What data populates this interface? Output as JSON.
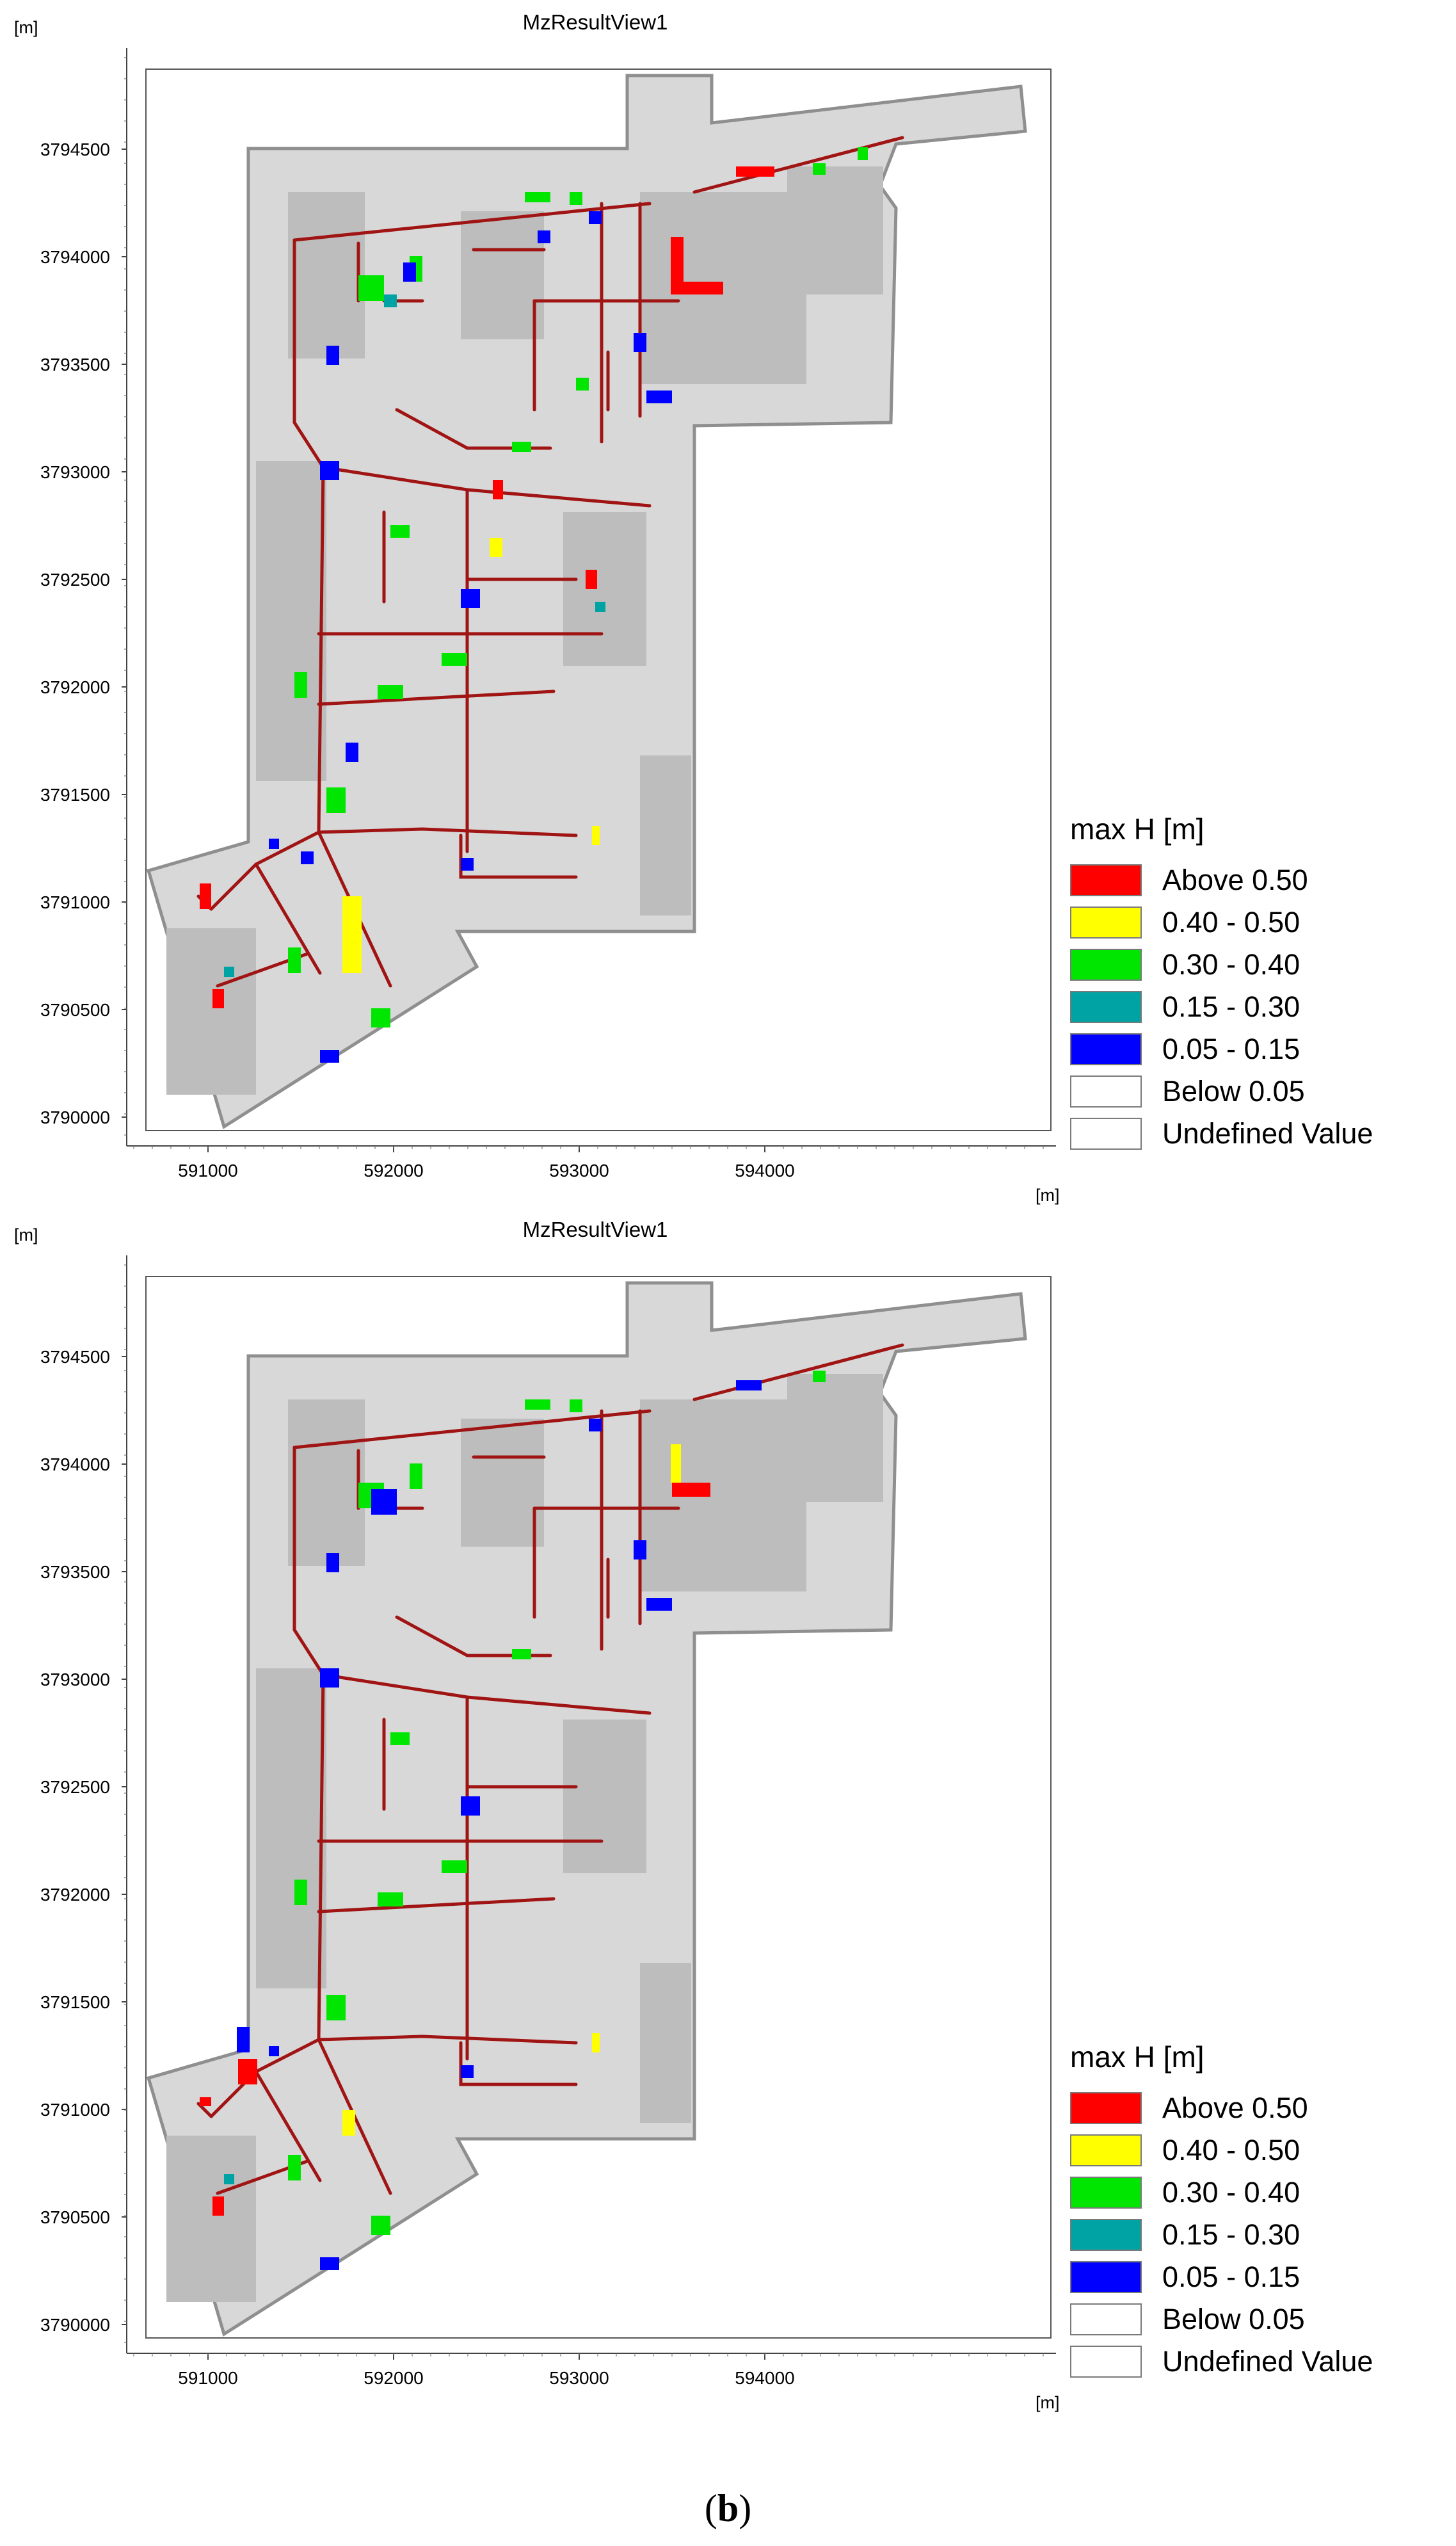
{
  "panels": [
    {
      "title": "MzResultView1",
      "y_unit": "[m]",
      "x_unit": "[m]",
      "y_ticks": [
        "3790000",
        "3790500",
        "3791000",
        "3791500",
        "3792000",
        "3792500",
        "3793000",
        "3793500",
        "3794000",
        "3794500"
      ],
      "x_ticks": [
        "591000",
        "592000",
        "593000",
        "594000"
      ],
      "legend": {
        "title": "max H [m]",
        "items": [
          {
            "label": "Above 0.50",
            "color": "#ff0000"
          },
          {
            "label": "0.40 - 0.50",
            "color": "#ffff00"
          },
          {
            "label": "0.30 - 0.40",
            "color": "#00e600"
          },
          {
            "label": "0.15 - 0.30",
            "color": "#00a3a3"
          },
          {
            "label": "0.05 - 0.15",
            "color": "#0000ff"
          },
          {
            "label": "Below 0.05",
            "color": "#ffffff"
          },
          {
            "label": "Undefined Value",
            "color": "#ffffff"
          }
        ]
      }
    },
    {
      "title": "MzResultView1",
      "y_unit": "[m]",
      "x_unit": "[m]",
      "y_ticks": [
        "3790000",
        "3790500",
        "3791000",
        "3791500",
        "3792000",
        "3792500",
        "3793000",
        "3793500",
        "3794000",
        "3794500"
      ],
      "x_ticks": [
        "591000",
        "592000",
        "593000",
        "594000"
      ],
      "legend": {
        "title": "max H [m]",
        "items": [
          {
            "label": "Above 0.50",
            "color": "#ff0000"
          },
          {
            "label": "0.40 - 0.50",
            "color": "#ffff00"
          },
          {
            "label": "0.30 - 0.40",
            "color": "#00e600"
          },
          {
            "label": "0.15 - 0.30",
            "color": "#00a3a3"
          },
          {
            "label": "0.05 - 0.15",
            "color": "#0000ff"
          },
          {
            "label": "Below 0.05",
            "color": "#ffffff"
          },
          {
            "label": "Undefined Value",
            "color": "#ffffff"
          }
        ]
      }
    }
  ],
  "caption": {
    "open": "(",
    "letter": "b",
    "close": ")"
  },
  "colors": {
    "domain": "#d8d8d8",
    "terrain": "#bdbdbd",
    "outline": "#8f8f8f",
    "pipe": "#a01414"
  }
}
